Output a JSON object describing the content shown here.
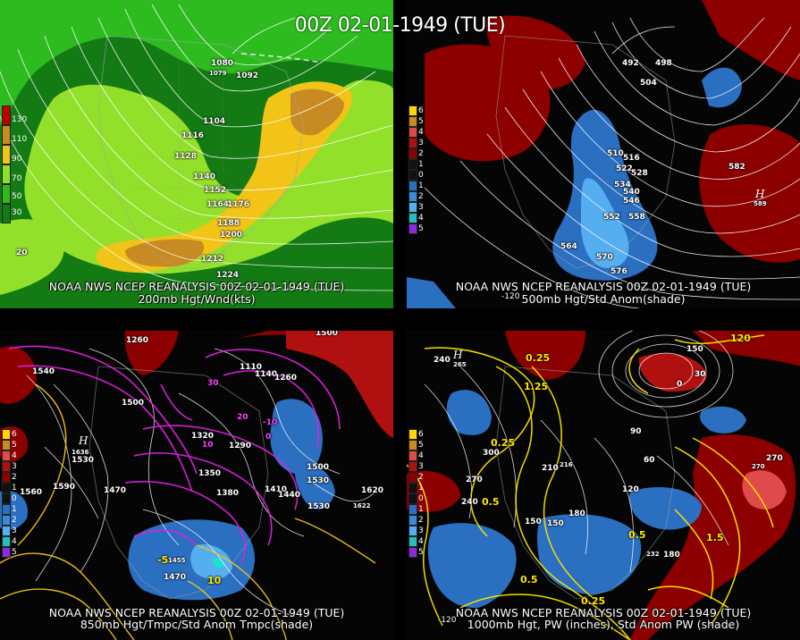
{
  "header": {
    "title": "00Z 02-01-1949 (TUE)"
  },
  "colors": {
    "jet_green": "#2dbb1f",
    "jet_light": "#93e02a",
    "jet_yellow": "#f2c418",
    "jet_orange": "#c88a22",
    "anom_red": "#8c0000",
    "anom_blue": "#2a6fc0",
    "anom_lightblue": "#55aef0",
    "yellow_contour": "#ffe600",
    "magenta_contour": "#e020e0"
  },
  "panels": [
    {
      "id": "200mb",
      "caption_line1": "NOAA NWS NCEP REANALYSIS 00Z 02-01-1949 (TUE)",
      "caption_line2": "200mb Hgt/Wnd(kts)",
      "legend": [
        "130",
        "110",
        "90",
        "70",
        "50",
        "30"
      ],
      "labels": [
        "1080",
        "1092",
        "1104",
        "1116",
        "1128",
        "1140",
        "1152",
        "1164",
        "1176",
        "1188",
        "1200",
        "1212",
        "1224",
        "1079",
        "20"
      ]
    },
    {
      "id": "500mb",
      "caption_line1": "NOAA NWS NCEP REANALYSIS 00Z 02-01-1949 (TUE)",
      "caption_line2": "500mb Hgt/Std Anom(shade)",
      "legend": [
        "6",
        "5",
        "4",
        "3",
        "2",
        "1",
        "0",
        "1",
        "2",
        "3",
        "4",
        "5"
      ],
      "labels": [
        "492",
        "498",
        "504",
        "510",
        "516",
        "522",
        "528",
        "534",
        "540",
        "546",
        "552",
        "558",
        "564",
        "570",
        "576",
        "582",
        "589",
        "-120"
      ],
      "h_label": "H"
    },
    {
      "id": "850mb",
      "caption_line1": "NOAA NWS NCEP REANALYSIS 00Z 02-01-1949 (TUE)",
      "caption_line2": "850mb Hgt/Tmpc/Std Anom Tmpc(shade)",
      "legend": [
        "6",
        "5",
        "4",
        "3",
        "2",
        "1",
        "0",
        "1",
        "2",
        "3",
        "4",
        "5"
      ],
      "labels": [
        "1260",
        "1500",
        "1540",
        "1590",
        "1560",
        "1530",
        "1636",
        "1470",
        "1500",
        "1320",
        "1290",
        "1350",
        "1380",
        "1410",
        "1440",
        "1500",
        "1530",
        "1620",
        "1622",
        "1110",
        "1140",
        "1260",
        "1455",
        "1470",
        "1530",
        "30",
        "20",
        "10",
        "-10",
        "0",
        "-5",
        "10"
      ],
      "h_label": "H"
    },
    {
      "id": "1000mb",
      "caption_line1": "NOAA NWS NCEP REANALYSIS 00Z 02-01-1949 (TUE)",
      "caption_line2": "1000mb Hgt, PW (inches), Std Anom PW (shade)",
      "legend": [
        "6",
        "5",
        "4",
        "3",
        "2",
        "1",
        "0",
        "1",
        "2",
        "3",
        "4",
        "5"
      ],
      "labels": [
        "240",
        "300",
        "270",
        "240",
        "210",
        "180",
        "150",
        "120",
        "90",
        "60",
        "30",
        "0",
        "150",
        "180",
        "270",
        "150",
        "-120",
        "0.25",
        "1.25",
        "0.25",
        "0.5",
        "0.5",
        "1.5",
        "0.5",
        "0.25",
        "120",
        "265",
        "270",
        "216",
        "232"
      ],
      "h_label": "H"
    }
  ]
}
